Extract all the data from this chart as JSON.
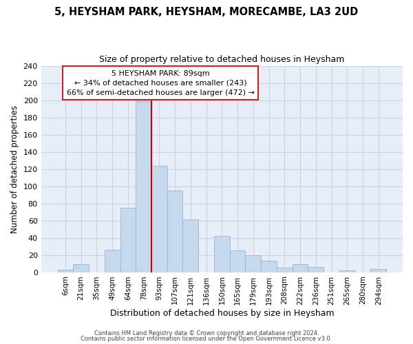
{
  "title": "5, HEYSHAM PARK, HEYSHAM, MORECAMBE, LA3 2UD",
  "subtitle": "Size of property relative to detached houses in Heysham",
  "xlabel": "Distribution of detached houses by size in Heysham",
  "ylabel": "Number of detached properties",
  "bar_color": "#c5d8ee",
  "bar_edge_color": "#9bbbd8",
  "categories": [
    "6sqm",
    "21sqm",
    "35sqm",
    "49sqm",
    "64sqm",
    "78sqm",
    "93sqm",
    "107sqm",
    "121sqm",
    "136sqm",
    "150sqm",
    "165sqm",
    "179sqm",
    "193sqm",
    "208sqm",
    "222sqm",
    "236sqm",
    "251sqm",
    "265sqm",
    "280sqm",
    "294sqm"
  ],
  "values": [
    3,
    9,
    0,
    26,
    75,
    199,
    124,
    95,
    61,
    0,
    42,
    25,
    20,
    13,
    5,
    9,
    6,
    0,
    2,
    0,
    4
  ],
  "vline_color": "#cc0000",
  "ylim": [
    0,
    240
  ],
  "yticks": [
    0,
    20,
    40,
    60,
    80,
    100,
    120,
    140,
    160,
    180,
    200,
    220,
    240
  ],
  "annotation_title": "5 HEYSHAM PARK: 89sqm",
  "annotation_line1": "← 34% of detached houses are smaller (243)",
  "annotation_line2": "66% of semi-detached houses are larger (472) →",
  "footer1": "Contains HM Land Registry data © Crown copyright and database right 2024.",
  "footer2": "Contains public sector information licensed under the Open Government Licence v3.0.",
  "background_color": "#ffffff",
  "axes_bg_color": "#e8eef7",
  "grid_color": "#c8d4e4"
}
